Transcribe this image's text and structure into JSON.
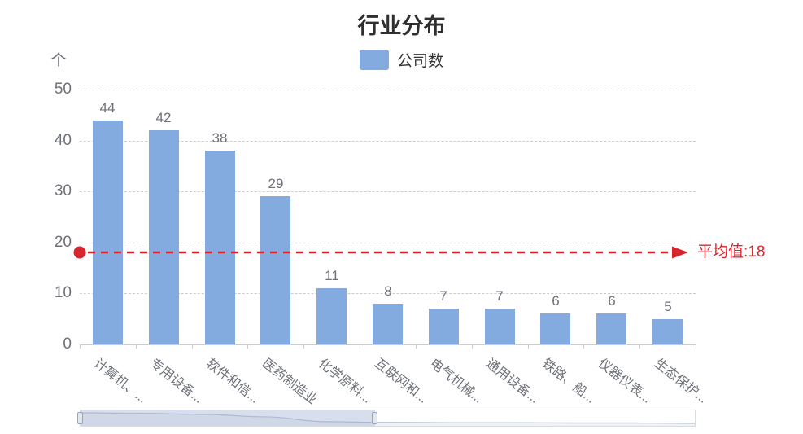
{
  "chart_data": {
    "type": "bar",
    "title": "行业分布",
    "xlabel": "",
    "ylabel": "个",
    "categories": [
      "计算机、...",
      "专用设备...",
      "软件和信...",
      "医药制造业",
      "化学原料...",
      "互联网和...",
      "电气机械...",
      "通用设备...",
      "铁路、船...",
      "仪器仪表...",
      "生态保护..."
    ],
    "series": [
      {
        "name": "公司数",
        "values": [
          44,
          42,
          38,
          29,
          11,
          8,
          7,
          7,
          6,
          6,
          5
        ],
        "color": "#83abdf"
      }
    ],
    "ylim": [
      0,
      50
    ],
    "yticks": [
      0,
      10,
      20,
      30,
      40,
      50
    ],
    "grid": true,
    "grid_style": "dashed",
    "legend_position": "top-center",
    "bar_value_labels": true,
    "mark_line": {
      "type": "average",
      "value": 18,
      "label": "平均值:18",
      "color": "#d9252d"
    },
    "data_zoom": {
      "start_percent": 0,
      "end_percent": 48
    }
  },
  "colors": {
    "bar": "#83abdf",
    "mark_line": "#d9252d",
    "axis": "#cccccc",
    "grid": "#cccccc",
    "tick_text": "#6e7079",
    "title_text": "#2f2f2f",
    "zoom_filler": "#b0bedA"
  }
}
